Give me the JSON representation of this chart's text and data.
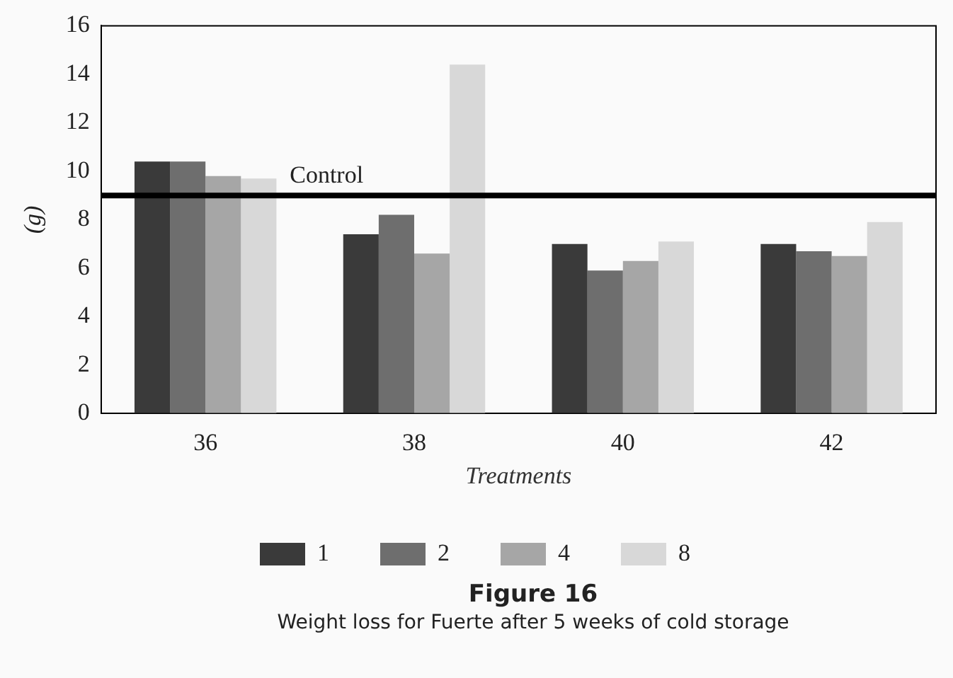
{
  "chart_data": {
    "type": "bar",
    "title": "Figure 16",
    "subtitle": "Weight loss for Fuerte after 5 weeks of cold storage",
    "xlabel": "Treatments",
    "ylabel": "(g)",
    "categories": [
      "36",
      "38",
      "40",
      "42"
    ],
    "series": [
      {
        "name": "1",
        "color": "#3a3a3a",
        "values": [
          10.4,
          7.4,
          7.0,
          7.0
        ]
      },
      {
        "name": "2",
        "color": "#6e6e6e",
        "values": [
          10.4,
          8.2,
          5.9,
          6.7
        ]
      },
      {
        "name": "4",
        "color": "#a6a6a6",
        "values": [
          9.8,
          6.6,
          6.3,
          6.5
        ]
      },
      {
        "name": "8",
        "color": "#d8d8d8",
        "values": [
          9.7,
          14.4,
          7.1,
          7.9
        ]
      }
    ],
    "ylim": [
      0,
      16
    ],
    "yticks": [
      0,
      2,
      4,
      6,
      8,
      10,
      12,
      14,
      16
    ],
    "grid": false,
    "legend": "bottom",
    "ref_lines": [
      {
        "axis": "y",
        "value": 9.0,
        "label": "Control",
        "color": "#000000"
      }
    ]
  }
}
